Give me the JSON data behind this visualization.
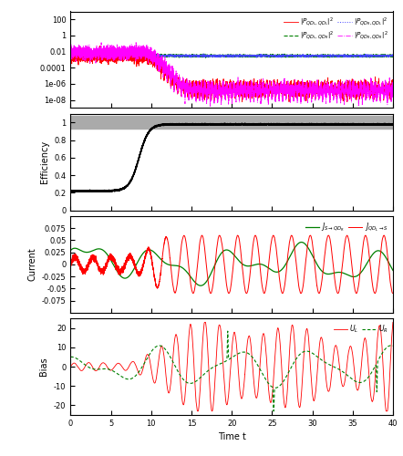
{
  "title": "",
  "xlabel": "Time t",
  "xlim": [
    0,
    40
  ],
  "figsize": [
    4.42,
    5.0
  ],
  "dpi": 100,
  "panel_a": {
    "yticks": [
      100,
      1,
      0.01,
      0.0001,
      1e-06,
      1e-08
    ],
    "yticklabels": [
      "100",
      "1",
      "0.01",
      "0.0001",
      "1e-06",
      "1e-08"
    ],
    "colors": [
      "red",
      "green",
      "#4444ff",
      "magenta"
    ],
    "linestyles": [
      "-",
      "--",
      ":",
      "-."
    ]
  },
  "panel_b": {
    "ylabel": "Efficiency",
    "yticks": [
      0,
      0.2,
      0.4,
      0.6,
      0.8,
      1
    ],
    "yticklabels": [
      "0",
      "0.2",
      "0.4",
      "0.6",
      "0.8",
      "1"
    ]
  },
  "panel_c": {
    "ylabel": "Current",
    "yticks": [
      -0.075,
      -0.05,
      -0.025,
      0,
      0.025,
      0.05,
      0.075
    ],
    "yticklabels": [
      "-0.075",
      "-0.05",
      "-0.025",
      "0",
      "0.025",
      "0.05",
      "0.075"
    ]
  },
  "panel_d": {
    "ylabel": "Bias",
    "yticks": [
      -20,
      -10,
      0,
      10,
      20
    ],
    "yticklabels": [
      "-20",
      "-10",
      "0",
      "10",
      "20"
    ]
  },
  "xticks": [
    0,
    5,
    10,
    15,
    20,
    25,
    30,
    35,
    40
  ],
  "xticklabels": [
    "0",
    "5",
    "10",
    "15",
    "20",
    "25",
    "30",
    "35",
    "40"
  ]
}
